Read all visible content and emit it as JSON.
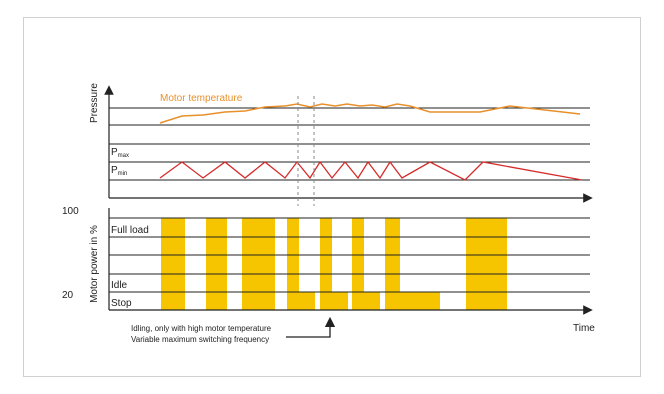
{
  "labels": {
    "pressure_axis": "Pressure",
    "motor_temperature": "Motor temperature",
    "p_max_main": "P",
    "p_max_sub": "max",
    "p_min_main": "P",
    "p_min_sub": "min",
    "power_axis": "Motor power in %",
    "value_100": "100",
    "value_20": "20",
    "full_load": "Full load",
    "idle": "Idle",
    "stop": "Stop",
    "time_axis": "Time",
    "note_line1": "Idling, only with high motor temperature",
    "note_line2": "Variable maximum switching frequency"
  },
  "colors": {
    "motor_temperature": "#e8902a",
    "pressure_line": "#d52b2b",
    "power_bars": "#f6c500",
    "axes": "#222222",
    "dashed": "#888888"
  }
}
